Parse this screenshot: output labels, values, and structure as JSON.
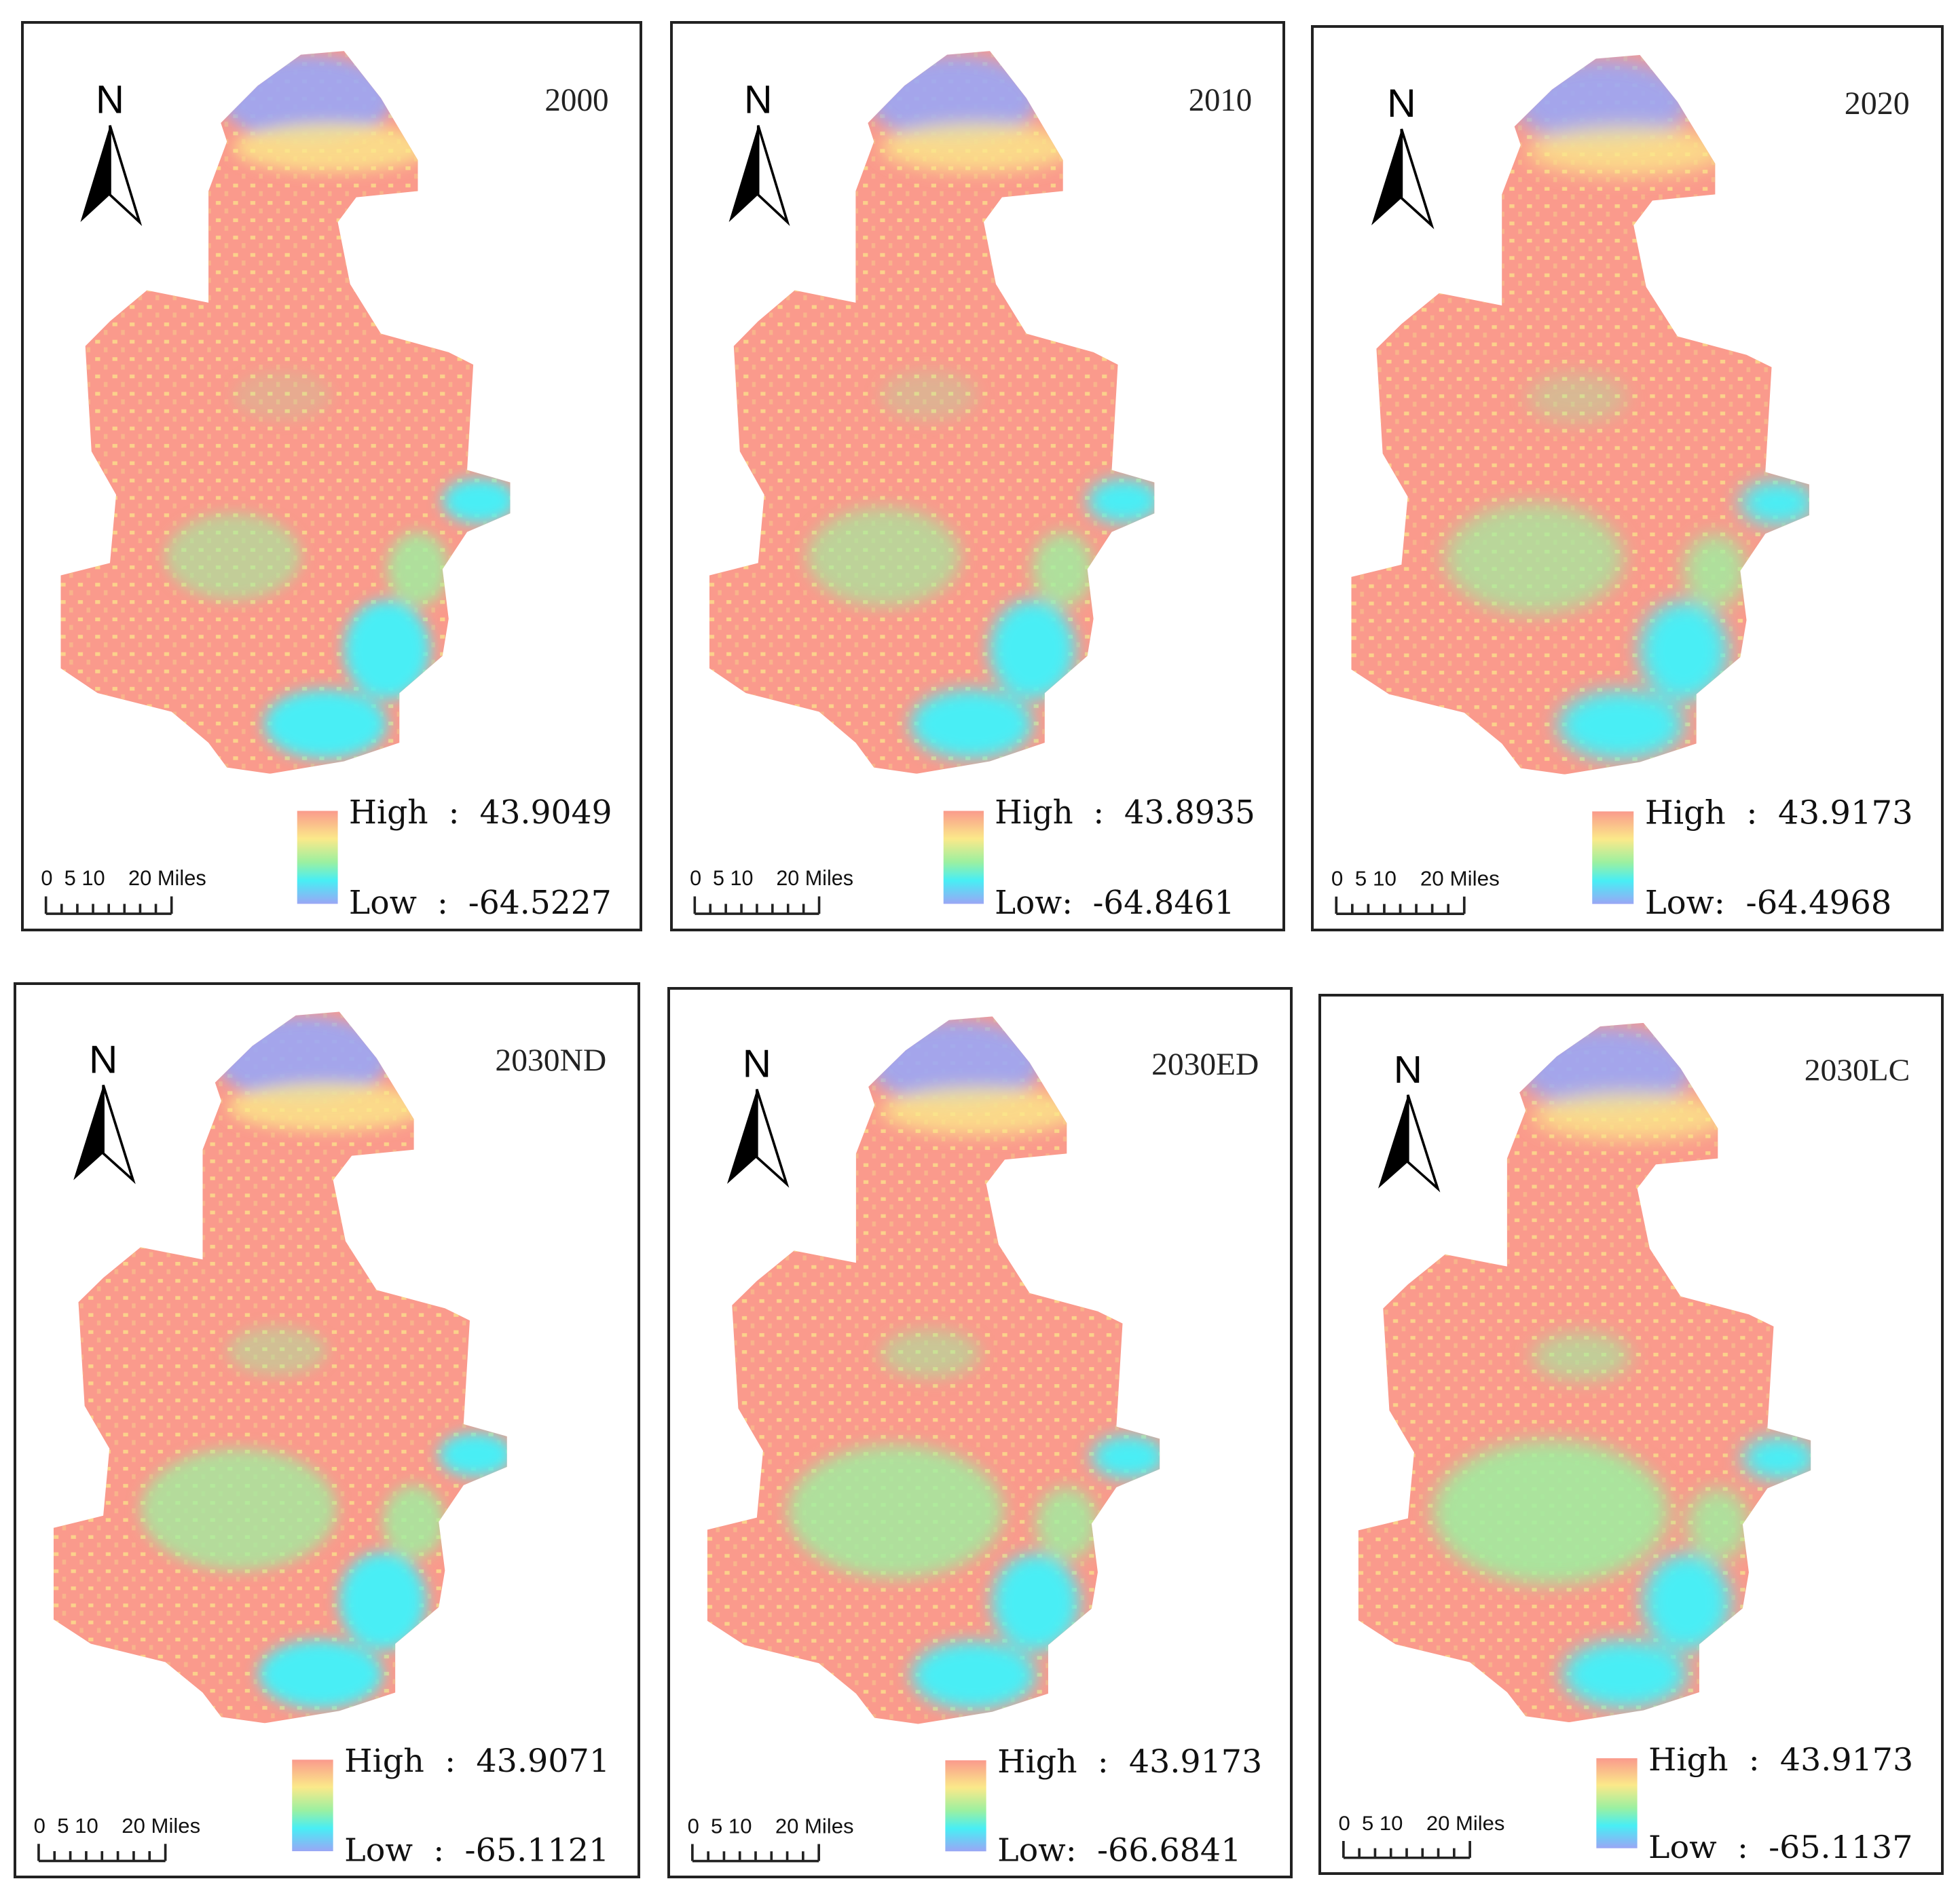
{
  "figure": {
    "legend_colors": {
      "high": "#fa9a8c",
      "mid_high": "#fbe98a",
      "mid": "#9cf0a0",
      "mid_low": "#48eef5",
      "low": "#9aa6f5"
    },
    "north_label": "N",
    "scale_label": "0  5 10    20 Miles",
    "panels": [
      {
        "title": "2000",
        "high": "High  :  43.9049",
        "low": "Low  :  -64.5227"
      },
      {
        "title": "2010",
        "high": "High  :  43.8935",
        "low": "Low:  -64.8461"
      },
      {
        "title": "2020",
        "high": "High  :  43.9173",
        "low": "Low:  -64.4968"
      },
      {
        "title": "2030ND",
        "high": "High  :  43.9071",
        "low": "Low  :  -65.1121"
      },
      {
        "title": "2030ED",
        "high": "High  :  43.9173",
        "low": "Low:  -66.6841"
      },
      {
        "title": "2030LC",
        "high": "High  :  43.9173",
        "low": "Low  :  -65.1137"
      }
    ]
  }
}
